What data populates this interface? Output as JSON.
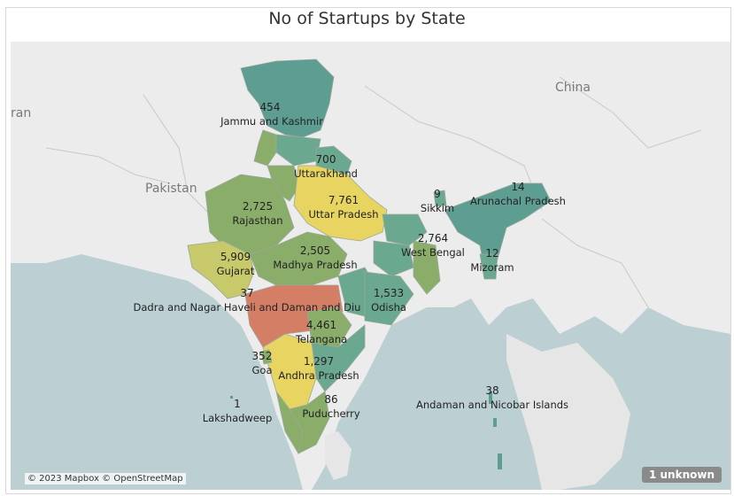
{
  "title": "No of Startups by State",
  "countries": {
    "pakistan": "Pakistan",
    "china": "China",
    "iran": "ran"
  },
  "states": [
    {
      "id": "jk",
      "name": "Jammu and Kashmir",
      "value": "454"
    },
    {
      "id": "uk",
      "name": "Uttarakhand",
      "value": "700"
    },
    {
      "id": "up",
      "name": "Uttar Pradesh",
      "value": "7,761"
    },
    {
      "id": "rj",
      "name": "Rajasthan",
      "value": "2,725"
    },
    {
      "id": "gj",
      "name": "Gujarat",
      "value": "5,909"
    },
    {
      "id": "mp",
      "name": "Madhya Pradesh",
      "value": "2,505"
    },
    {
      "id": "dn",
      "name": "Dadra and Nagar Haveli and Daman and Diu",
      "value": "37"
    },
    {
      "id": "od",
      "name": "Odisha",
      "value": "1,533"
    },
    {
      "id": "tg",
      "name": "Telangana",
      "value": "4,461"
    },
    {
      "id": "ga",
      "name": "Goa",
      "value": "352"
    },
    {
      "id": "ap",
      "name": "Andhra Pradesh",
      "value": "1,297"
    },
    {
      "id": "ld",
      "name": "Lakshadweep",
      "value": "1"
    },
    {
      "id": "py",
      "name": "Puducherry",
      "value": "86"
    },
    {
      "id": "an",
      "name": "Andaman and Nicobar Islands",
      "value": "38"
    },
    {
      "id": "sk",
      "name": "Sikkim",
      "value": "9"
    },
    {
      "id": "ar",
      "name": "Arunachal Pradesh",
      "value": "14"
    },
    {
      "id": "wb",
      "name": "West Bengal",
      "value": "2,764"
    },
    {
      "id": "mz",
      "name": "Mizoram",
      "value": "12"
    }
  ],
  "colors": {
    "high": "#e8d460",
    "upper_mid": "#c8c96a",
    "mid": "#8aae6a",
    "low": "#6aa890",
    "lowest": "#5e9d92",
    "max": "#d47e66",
    "land": "#ececec",
    "water": "#bcd0d4"
  },
  "attribution": "© 2023 Mapbox © OpenStreetMap",
  "unknown_badge": "1 unknown"
}
